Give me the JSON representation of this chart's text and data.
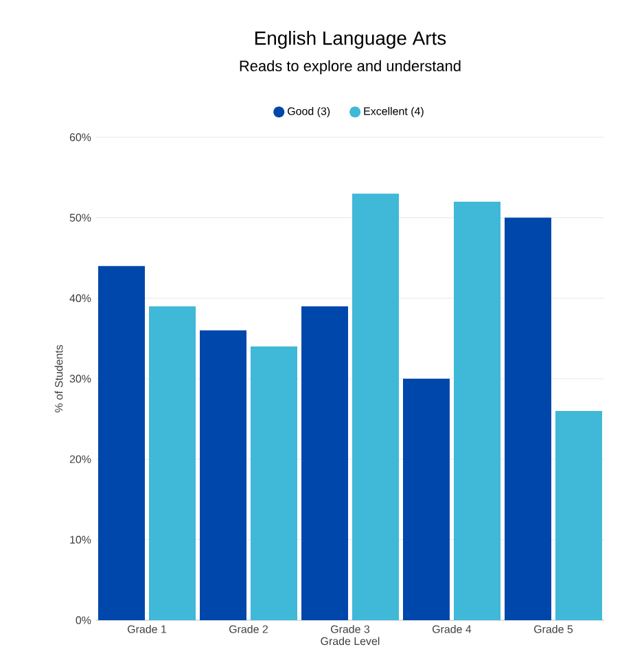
{
  "chart_data": {
    "type": "bar",
    "title": "English Language Arts",
    "subtitle": "Reads to explore and understand",
    "xlabel": "Grade Level",
    "ylabel": "% of Students",
    "categories": [
      "Grade 1",
      "Grade 2",
      "Grade 3",
      "Grade 4",
      "Grade 5"
    ],
    "series": [
      {
        "name": "Good (3)",
        "color": "#0047ab",
        "values": [
          44,
          36,
          39,
          30,
          50
        ]
      },
      {
        "name": "Excellent (4)",
        "color": "#40b8d8",
        "values": [
          39,
          34,
          53,
          52,
          26
        ]
      }
    ],
    "ylim": [
      0,
      60
    ],
    "yticks": [
      {
        "value": 0,
        "label": "0%"
      },
      {
        "value": 10,
        "label": "10%"
      },
      {
        "value": 20,
        "label": "20%"
      },
      {
        "value": 30,
        "label": "30%"
      },
      {
        "value": 40,
        "label": "40%"
      },
      {
        "value": 50,
        "label": "50%"
      },
      {
        "value": 60,
        "label": "60%"
      }
    ],
    "grid": "y",
    "legend": "top"
  }
}
